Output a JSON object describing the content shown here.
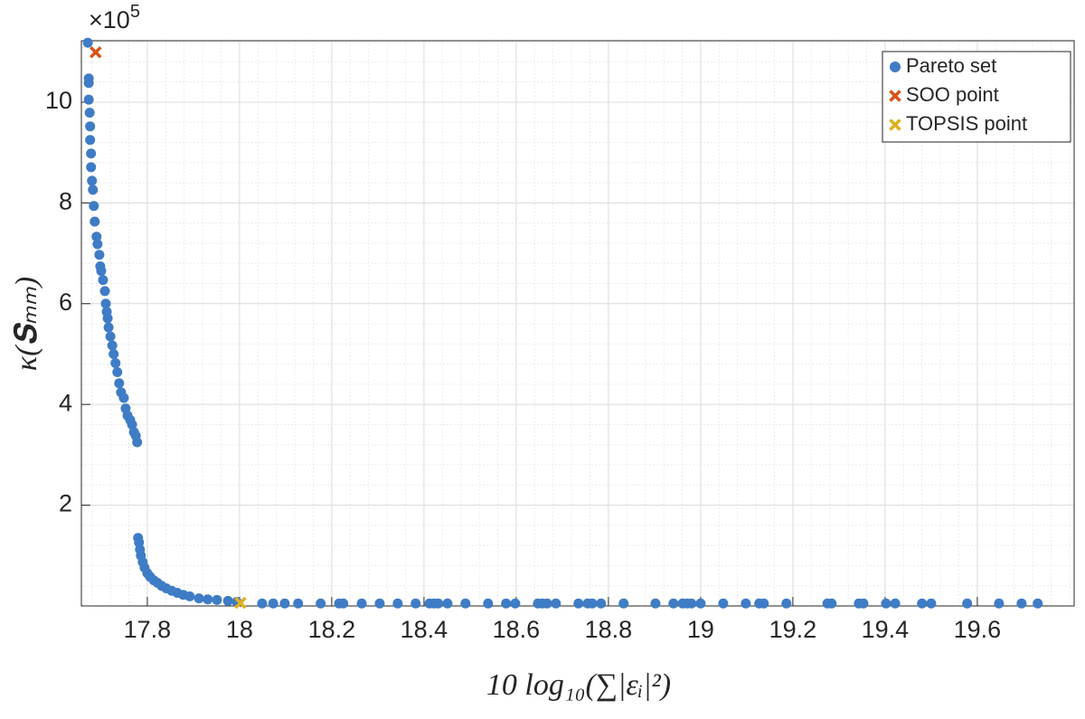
{
  "chart_data": {
    "type": "scatter",
    "xlabel": "10 log₁₀(∑|εᵢ|²)",
    "ylabel": "κ(𝐒ₘₘ)",
    "y_multiplier": "×10",
    "y_multiplier_exponent": "5",
    "xlim": [
      17.657,
      19.81
    ],
    "ylim": [
      0,
      11.22
    ],
    "xticks": [
      17.8,
      18,
      18.2,
      18.4,
      18.6,
      18.8,
      19,
      19.2,
      19.4,
      19.6
    ],
    "yticks": [
      2,
      4,
      6,
      8,
      10
    ],
    "grid": true,
    "minor_grid_divisions": 5,
    "legend_loc": "upper right",
    "series": [
      {
        "name": "Pareto set",
        "color": "#3f7cc6",
        "marker": "o",
        "x": [
          17.671,
          17.673,
          17.673,
          17.673,
          17.675,
          17.676,
          17.676,
          17.678,
          17.678,
          17.68,
          17.682,
          17.684,
          17.686,
          17.69,
          17.692,
          17.696,
          17.698,
          17.7,
          17.704,
          17.708,
          17.71,
          17.712,
          17.714,
          17.716,
          17.72,
          17.724,
          17.727,
          17.731,
          17.735,
          17.739,
          17.743,
          17.749,
          17.753,
          17.757,
          17.763,
          17.767,
          17.771,
          17.775,
          17.778,
          17.78,
          17.782,
          17.784,
          17.786,
          17.79,
          17.794,
          17.8,
          17.806,
          17.814,
          17.822,
          17.831,
          17.841,
          17.853,
          17.865,
          17.878,
          17.892,
          17.912,
          17.931,
          17.951,
          17.975,
          17.994,
          18.049,
          18.073,
          18.098,
          18.127,
          18.176,
          18.216,
          18.225,
          18.265,
          18.304,
          18.343,
          18.382,
          18.412,
          18.422,
          18.431,
          18.451,
          18.49,
          18.539,
          18.578,
          18.598,
          18.647,
          18.657,
          18.667,
          18.686,
          18.735,
          18.755,
          18.765,
          18.784,
          18.833,
          18.902,
          18.941,
          18.961,
          18.971,
          18.98,
          19.0,
          19.049,
          19.098,
          19.127,
          19.137,
          19.186,
          19.275,
          19.284,
          19.343,
          19.353,
          19.402,
          19.422,
          19.48,
          19.5,
          19.578,
          19.647,
          19.696,
          19.731
        ],
        "values": [
          11.18,
          10.47,
          10.38,
          10.05,
          9.79,
          9.52,
          9.25,
          8.98,
          8.71,
          8.44,
          8.26,
          7.94,
          7.63,
          7.33,
          7.18,
          6.97,
          6.74,
          6.65,
          6.47,
          6.25,
          6.0,
          5.84,
          5.71,
          5.53,
          5.35,
          5.17,
          5.0,
          4.82,
          4.64,
          4.42,
          4.24,
          4.13,
          3.92,
          3.78,
          3.69,
          3.6,
          3.45,
          3.38,
          3.25,
          1.35,
          1.26,
          1.12,
          1.0,
          0.87,
          0.76,
          0.65,
          0.58,
          0.51,
          0.46,
          0.4,
          0.35,
          0.3,
          0.26,
          0.22,
          0.19,
          0.15,
          0.13,
          0.12,
          0.1,
          0.08,
          0.05,
          0.05,
          0.05,
          0.05,
          0.05,
          0.05,
          0.05,
          0.05,
          0.05,
          0.05,
          0.05,
          0.05,
          0.05,
          0.05,
          0.05,
          0.05,
          0.05,
          0.05,
          0.05,
          0.05,
          0.05,
          0.05,
          0.05,
          0.05,
          0.05,
          0.05,
          0.05,
          0.05,
          0.05,
          0.05,
          0.05,
          0.05,
          0.05,
          0.05,
          0.05,
          0.05,
          0.05,
          0.05,
          0.05,
          0.05,
          0.05,
          0.05,
          0.05,
          0.05,
          0.05,
          0.05,
          0.05,
          0.05,
          0.05,
          0.05,
          0.05
        ]
      },
      {
        "name": "SOO point",
        "color": "#d95319",
        "marker": "x",
        "x": [
          17.688
        ],
        "values": [
          10.99
        ]
      },
      {
        "name": "TOPSIS point",
        "color": "#e0b020",
        "marker": "x",
        "x": [
          18.002
        ],
        "values": [
          0.06
        ]
      }
    ]
  }
}
